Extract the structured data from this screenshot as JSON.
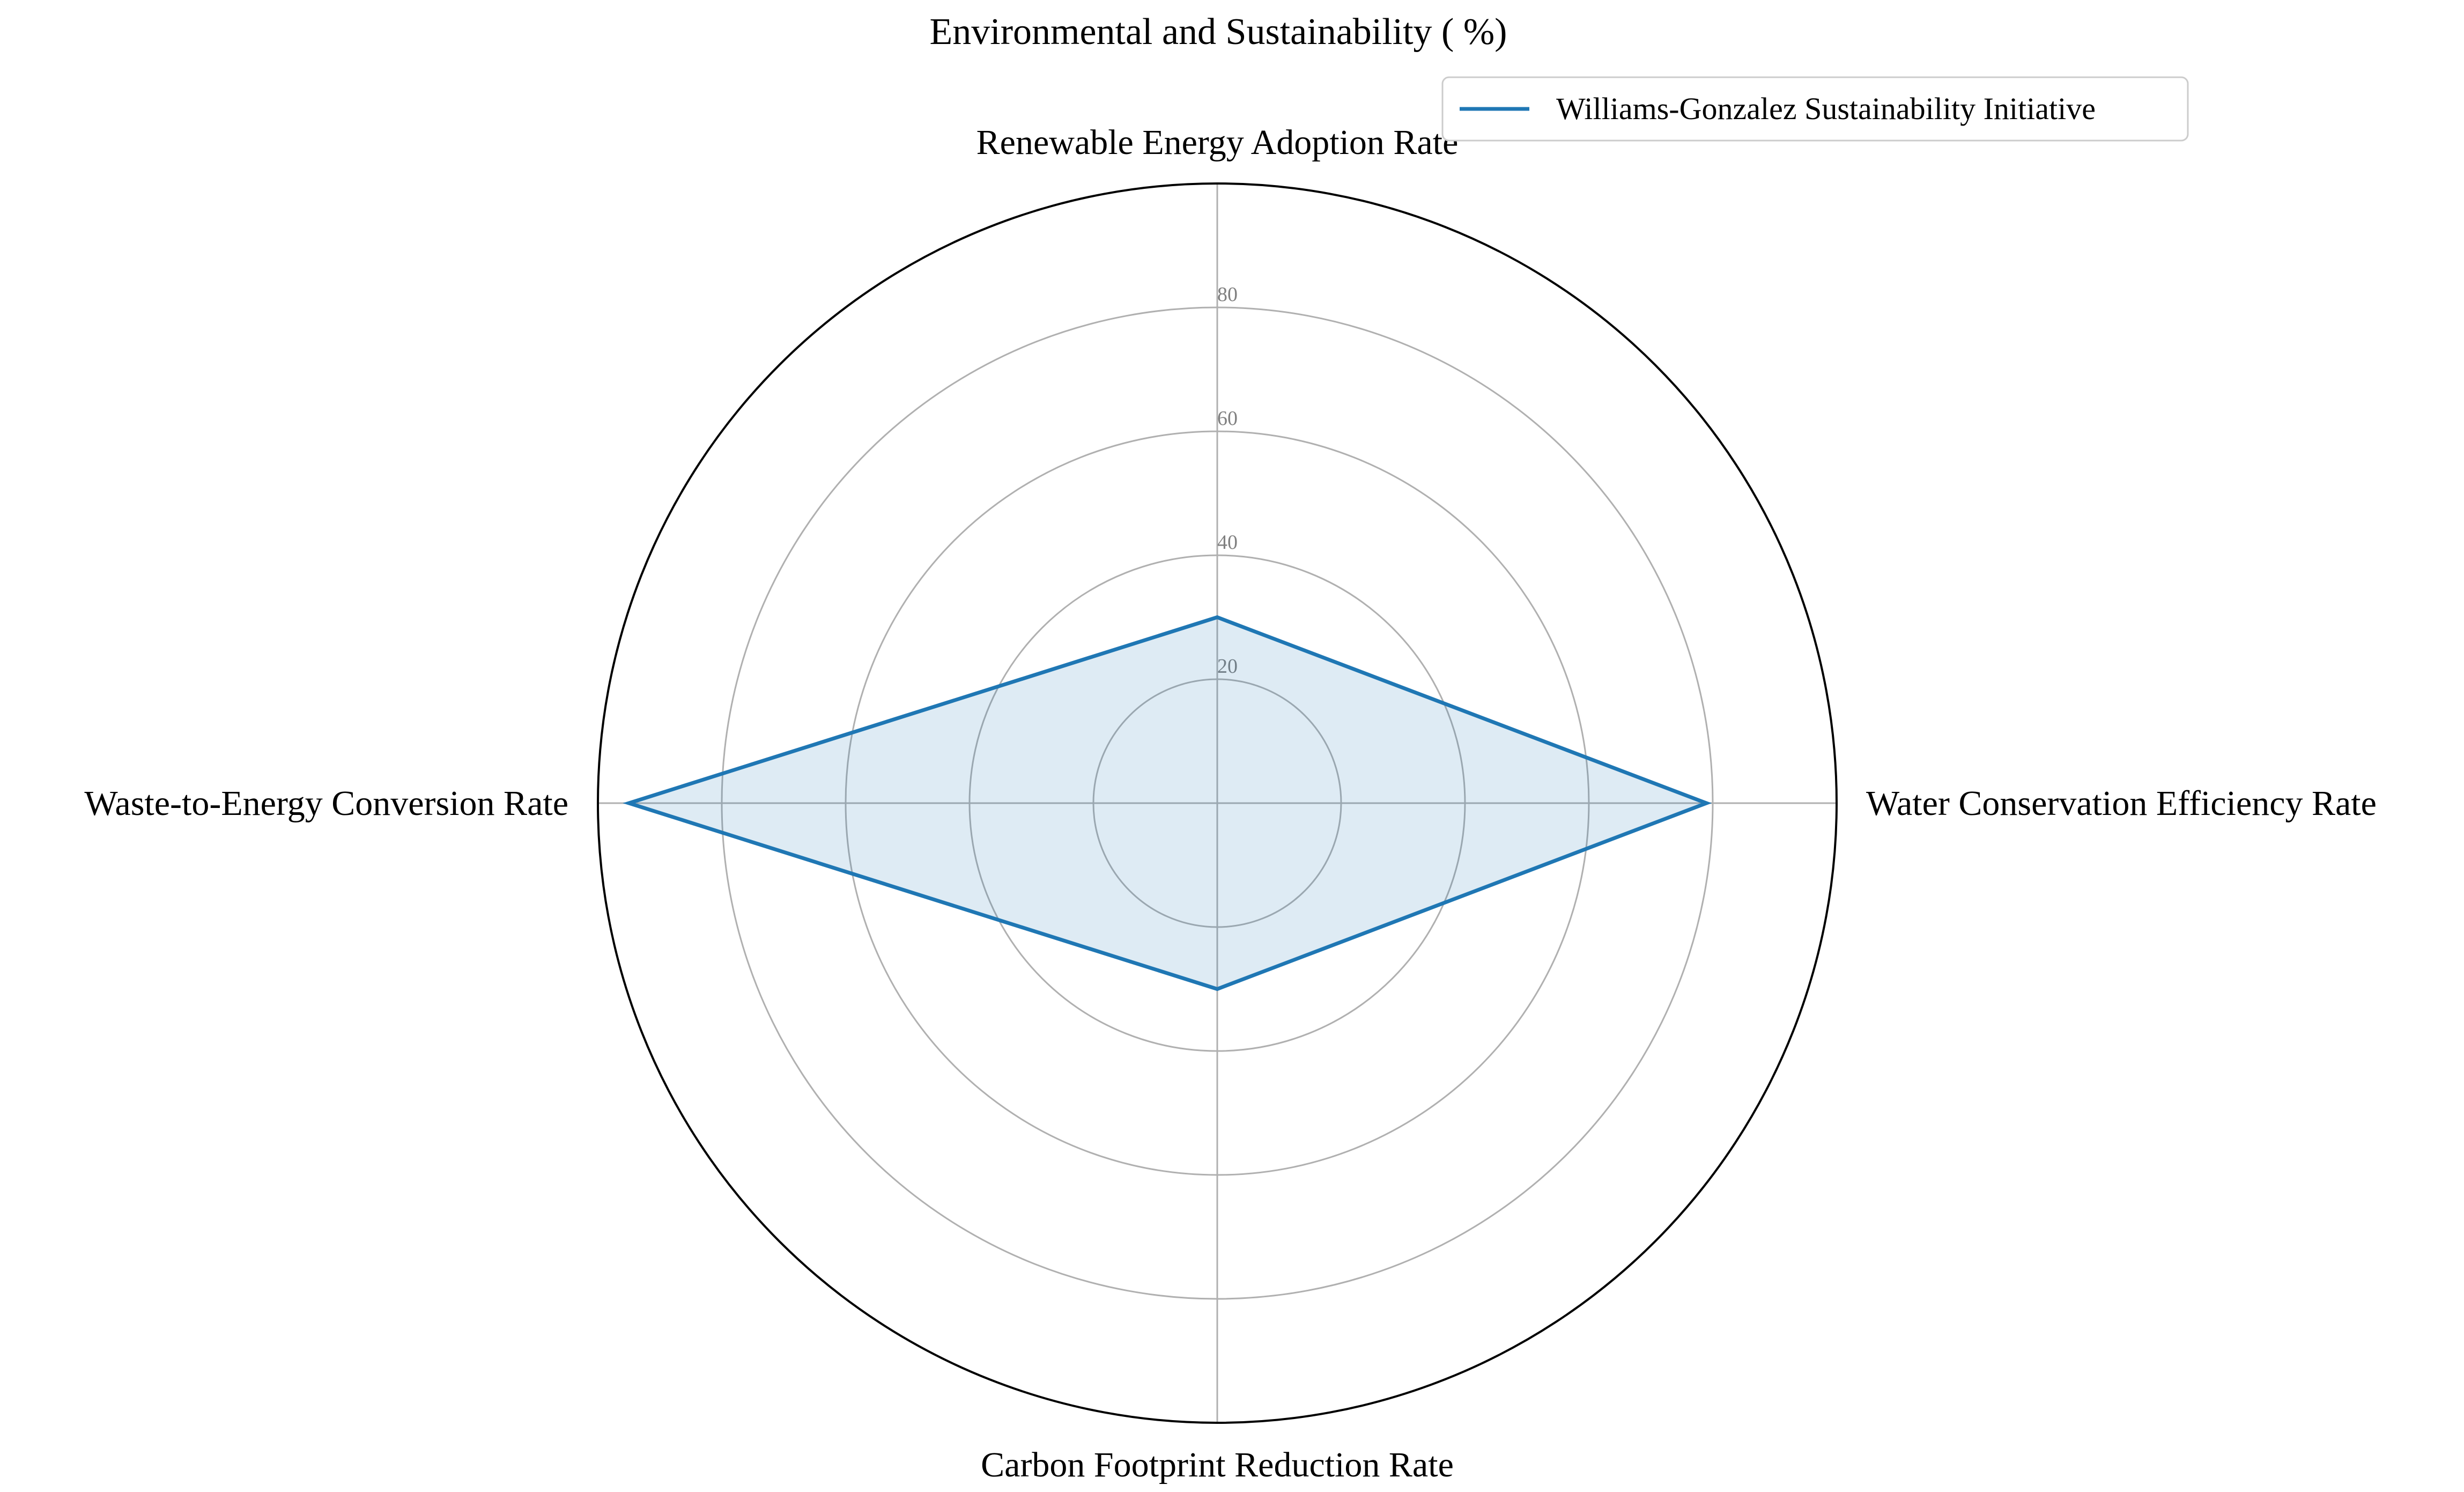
{
  "chart_data": {
    "type": "radar",
    "title": "Environmental and Sustainability ( %)",
    "categories": [
      "Renewable Energy Adoption Rate",
      "Water Conservation Efficiency Rate",
      "Carbon Footprint Reduction Rate",
      "Waste-to-Energy Conversion Rate"
    ],
    "series": [
      {
        "name": "Williams-Gonzalez Sustainability Initiative",
        "values": [
          30,
          79,
          30,
          95
        ],
        "color": "#1f77b4"
      }
    ],
    "rlim": [
      0,
      100
    ],
    "r_ticks": [
      20,
      40,
      60,
      80
    ],
    "r_tick_labels": [
      "20",
      "40",
      "60",
      "80"
    ],
    "grid": true,
    "legend_placement": "top-right"
  }
}
